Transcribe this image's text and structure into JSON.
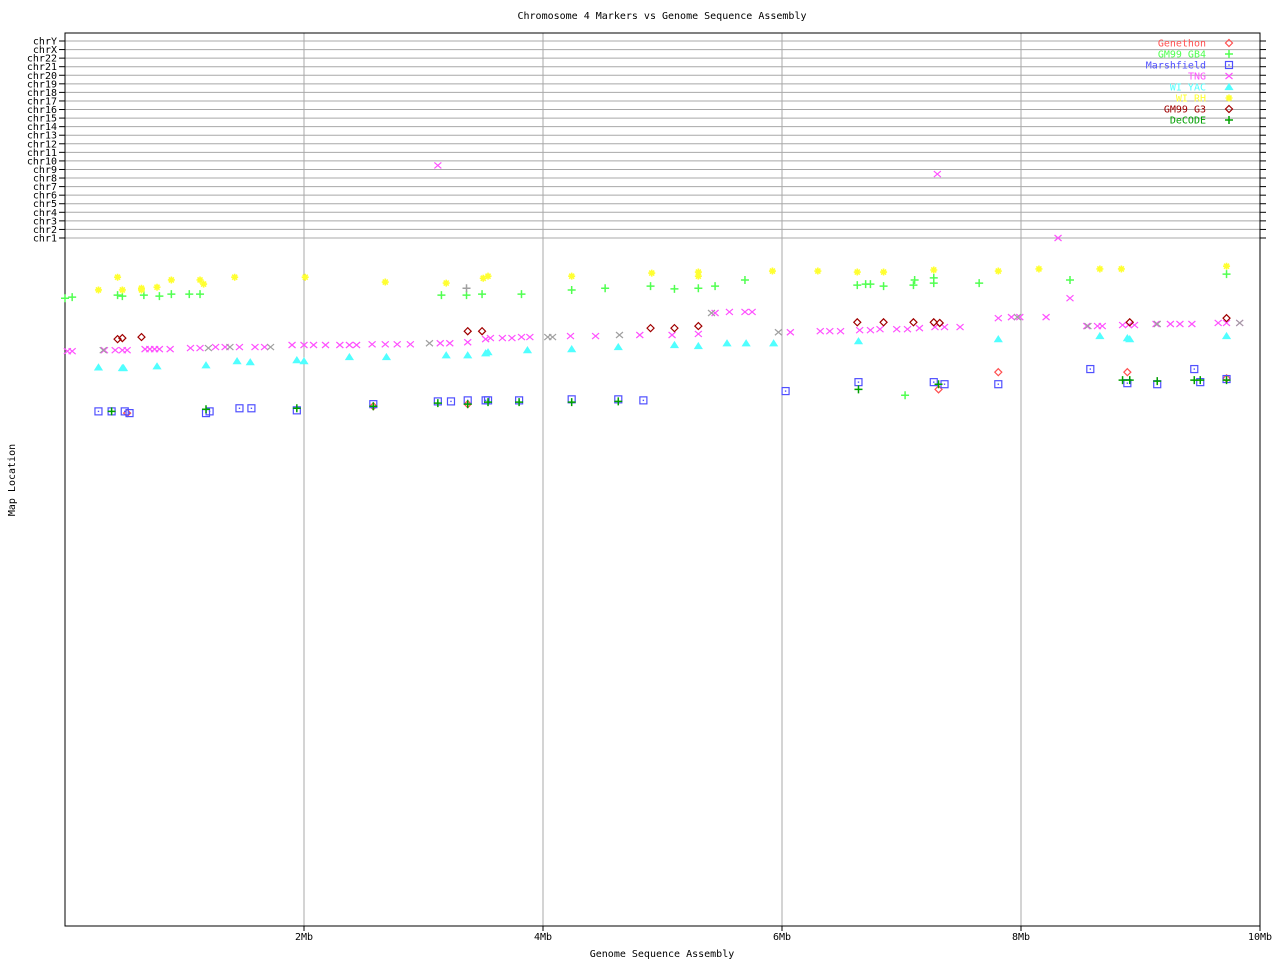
{
  "chart_data": {
    "type": "scatter",
    "title": "Chromosome 4 Markers vs Genome Sequence Assembly",
    "xlabel": "Genome Sequence Assembly",
    "ylabel": "Map Location",
    "xlim": [
      0,
      10
    ],
    "x_unit": "Mb",
    "x_ticks": [
      "2Mb",
      "4Mb",
      "6Mb",
      "8Mb",
      "10Mb"
    ],
    "x_tick_values": [
      2,
      4,
      6,
      8,
      10
    ],
    "ylim": [
      0,
      200
    ],
    "y_inverted": true,
    "chromosome_lines": [
      "chrY",
      "chrX",
      "chr22",
      "chr21",
      "chr20",
      "chr19",
      "chr18",
      "chr17",
      "chr16",
      "chr15",
      "chr14",
      "chr13",
      "chr12",
      "chr11",
      "chr10",
      "chr9",
      "chr8",
      "chr7",
      "chr6",
      "chr5",
      "chr4",
      "chr3",
      "chr2",
      "chr1"
    ],
    "grid": true,
    "legend_position": "top-right",
    "series": [
      {
        "name": "Genethon",
        "color": "#ff5050",
        "marker": "diamond",
        "points": [
          [
            0.52,
            50.9
          ],
          [
            2.58,
            48.9
          ],
          [
            3.37,
            48.3
          ],
          [
            7.31,
            44.0
          ],
          [
            7.81,
            39.0
          ],
          [
            8.89,
            39.0
          ],
          [
            9.72,
            40.8
          ]
        ]
      },
      {
        "name": "GM99 GB4",
        "color": "#50ff50",
        "marker": "plus",
        "points": [
          [
            0.0,
            17.5
          ],
          [
            0.06,
            17.2
          ],
          [
            0.44,
            16.6
          ],
          [
            0.48,
            16.9
          ],
          [
            0.66,
            16.6
          ],
          [
            0.79,
            16.9
          ],
          [
            0.89,
            16.3
          ],
          [
            1.04,
            16.3
          ],
          [
            1.13,
            16.3
          ],
          [
            3.15,
            16.6
          ],
          [
            3.36,
            16.6
          ],
          [
            3.49,
            16.3
          ],
          [
            3.82,
            16.3
          ],
          [
            4.24,
            15.1
          ],
          [
            4.52,
            14.6
          ],
          [
            4.9,
            14.0
          ],
          [
            5.1,
            14.8
          ],
          [
            5.3,
            14.6
          ],
          [
            5.44,
            14.0
          ],
          [
            5.69,
            12.2
          ],
          [
            6.63,
            13.7
          ],
          [
            6.7,
            13.4
          ],
          [
            6.74,
            13.4
          ],
          [
            6.85,
            14.0
          ],
          [
            7.03,
            45.7
          ],
          [
            7.1,
            13.7
          ],
          [
            7.11,
            12.2
          ],
          [
            7.27,
            13.1
          ],
          [
            7.27,
            11.6
          ],
          [
            7.65,
            13.1
          ],
          [
            8.41,
            12.2
          ],
          [
            9.72,
            10.5
          ]
        ]
      },
      {
        "name": "Marshfield",
        "color": "#5050ff",
        "marker": "square",
        "points": [
          [
            0.28,
            50.4
          ],
          [
            0.39,
            50.4
          ],
          [
            0.5,
            50.4
          ],
          [
            0.54,
            50.9
          ],
          [
            1.18,
            50.9
          ],
          [
            1.21,
            50.4
          ],
          [
            1.46,
            49.5
          ],
          [
            1.56,
            49.5
          ],
          [
            1.94,
            50.1
          ],
          [
            2.58,
            48.3
          ],
          [
            3.12,
            47.5
          ],
          [
            3.23,
            47.5
          ],
          [
            3.37,
            47.2
          ],
          [
            3.52,
            47.2
          ],
          [
            3.54,
            47.2
          ],
          [
            3.8,
            47.2
          ],
          [
            4.24,
            46.9
          ],
          [
            4.63,
            46.9
          ],
          [
            4.84,
            47.2
          ],
          [
            6.03,
            44.5
          ],
          [
            6.64,
            41.9
          ],
          [
            7.27,
            41.9
          ],
          [
            7.36,
            42.5
          ],
          [
            7.81,
            42.5
          ],
          [
            8.58,
            38.1
          ],
          [
            8.89,
            42.2
          ],
          [
            9.14,
            42.5
          ],
          [
            9.45,
            38.1
          ],
          [
            9.5,
            41.9
          ],
          [
            9.72,
            41.0
          ]
        ]
      },
      {
        "name": "TNG",
        "color": "#ff50ff",
        "marker": "x",
        "points": [
          [
            0.02,
            32.9
          ],
          [
            0.06,
            32.9
          ],
          [
            0.33,
            32.6
          ],
          [
            0.42,
            32.6
          ],
          [
            0.48,
            32.6
          ],
          [
            0.52,
            32.6
          ],
          [
            0.67,
            32.3
          ],
          [
            0.71,
            32.3
          ],
          [
            0.75,
            32.3
          ],
          [
            0.79,
            32.3
          ],
          [
            0.88,
            32.3
          ],
          [
            1.05,
            32.0
          ],
          [
            1.13,
            32.0
          ],
          [
            1.26,
            31.7
          ],
          [
            1.34,
            31.7
          ],
          [
            1.46,
            31.7
          ],
          [
            1.59,
            31.7
          ],
          [
            1.67,
            31.7
          ],
          [
            1.9,
            31.1
          ],
          [
            2.0,
            31.1
          ],
          [
            2.08,
            31.1
          ],
          [
            2.18,
            31.1
          ],
          [
            2.3,
            31.1
          ],
          [
            2.38,
            31.1
          ],
          [
            2.44,
            31.1
          ],
          [
            2.57,
            30.9
          ],
          [
            2.68,
            30.9
          ],
          [
            2.78,
            30.9
          ],
          [
            2.89,
            30.9
          ],
          [
            3.14,
            30.6
          ],
          [
            3.22,
            30.6
          ],
          [
            3.37,
            30.3
          ],
          [
            3.52,
            29.4
          ],
          [
            3.56,
            29.1
          ],
          [
            3.66,
            29.1
          ],
          [
            3.74,
            29.1
          ],
          [
            3.82,
            28.8
          ],
          [
            3.89,
            28.8
          ],
          [
            4.23,
            28.5
          ],
          [
            4.44,
            28.5
          ],
          [
            4.81,
            28.2
          ],
          [
            5.08,
            28.2
          ],
          [
            5.3,
            27.9
          ],
          [
            5.44,
            21.8
          ],
          [
            5.56,
            21.5
          ],
          [
            5.69,
            21.5
          ],
          [
            5.75,
            21.5
          ],
          [
            6.07,
            27.4
          ],
          [
            6.32,
            27.1
          ],
          [
            6.4,
            27.1
          ],
          [
            6.49,
            27.1
          ],
          [
            6.65,
            26.8
          ],
          [
            6.74,
            26.8
          ],
          [
            6.82,
            26.5
          ],
          [
            6.96,
            26.5
          ],
          [
            7.05,
            26.5
          ],
          [
            7.15,
            26.2
          ],
          [
            7.28,
            25.9
          ],
          [
            7.36,
            25.9
          ],
          [
            7.49,
            25.9
          ],
          [
            7.81,
            23.3
          ],
          [
            7.92,
            23.0
          ],
          [
            7.99,
            23.0
          ],
          [
            8.21,
            23.0
          ],
          [
            8.41,
            17.5
          ],
          [
            8.55,
            25.6
          ],
          [
            8.64,
            25.6
          ],
          [
            8.68,
            25.6
          ],
          [
            8.85,
            25.3
          ],
          [
            8.9,
            25.3
          ],
          [
            8.95,
            25.3
          ],
          [
            9.13,
            25.0
          ],
          [
            9.25,
            25.0
          ],
          [
            9.33,
            25.0
          ],
          [
            9.43,
            25.0
          ],
          [
            9.65,
            24.7
          ],
          [
            9.72,
            24.7
          ],
          [
            9.83,
            24.7
          ]
        ],
        "off_chromosome_points": [
          {
            "x": 3.12,
            "chr": "chr9"
          },
          {
            "x": 7.3,
            "chr": "chr8"
          },
          {
            "x": 8.31,
            "chr": "chr1"
          }
        ]
      },
      {
        "name": "WI YAC",
        "color": "#50ffff",
        "marker": "triangle",
        "points": [
          [
            0.28,
            37.6
          ],
          [
            0.48,
            37.8
          ],
          [
            0.49,
            37.8
          ],
          [
            0.77,
            37.3
          ],
          [
            1.18,
            37.0
          ],
          [
            1.44,
            35.8
          ],
          [
            1.55,
            36.1
          ],
          [
            1.94,
            35.5
          ],
          [
            2.0,
            35.8
          ],
          [
            2.38,
            34.6
          ],
          [
            2.69,
            34.6
          ],
          [
            3.19,
            34.1
          ],
          [
            3.37,
            34.1
          ],
          [
            3.52,
            33.5
          ],
          [
            3.54,
            33.2
          ],
          [
            3.87,
            32.6
          ],
          [
            4.24,
            32.3
          ],
          [
            4.63,
            31.7
          ],
          [
            5.1,
            31.1
          ],
          [
            5.3,
            31.4
          ],
          [
            5.54,
            30.6
          ],
          [
            5.7,
            30.6
          ],
          [
            5.93,
            30.6
          ],
          [
            6.64,
            30.0
          ],
          [
            7.81,
            29.4
          ],
          [
            8.66,
            28.5
          ],
          [
            8.89,
            29.1
          ],
          [
            8.91,
            29.4
          ],
          [
            9.72,
            28.5
          ]
        ]
      },
      {
        "name": "WI RH",
        "color": "#ffff30",
        "marker": "star",
        "points": [
          [
            0.28,
            15.1
          ],
          [
            0.44,
            11.4
          ],
          [
            0.48,
            15.1
          ],
          [
            0.64,
            14.6
          ],
          [
            0.64,
            15.1
          ],
          [
            0.77,
            14.3
          ],
          [
            0.89,
            12.2
          ],
          [
            1.13,
            12.2
          ],
          [
            1.16,
            13.4
          ],
          [
            1.42,
            11.4
          ],
          [
            2.01,
            11.4
          ],
          [
            2.68,
            12.8
          ],
          [
            3.19,
            13.1
          ],
          [
            3.5,
            11.7
          ],
          [
            3.54,
            11.1
          ],
          [
            4.24,
            11.1
          ],
          [
            4.91,
            10.2
          ],
          [
            5.3,
            9.9
          ],
          [
            5.3,
            11.1
          ],
          [
            5.92,
            9.6
          ],
          [
            6.3,
            9.6
          ],
          [
            6.63,
            9.9
          ],
          [
            6.85,
            9.9
          ],
          [
            7.27,
            9.3
          ],
          [
            7.81,
            9.6
          ],
          [
            8.15,
            9.0
          ],
          [
            8.66,
            9.0
          ],
          [
            8.84,
            9.0
          ],
          [
            9.72,
            8.2
          ]
        ]
      },
      {
        "name": "GM99 G3",
        "color": "#a00000",
        "marker": "diamond",
        "points": [
          [
            0.44,
            29.4
          ],
          [
            0.48,
            29.1
          ],
          [
            0.64,
            28.8
          ],
          [
            3.37,
            27.1
          ],
          [
            3.49,
            27.1
          ],
          [
            4.9,
            26.2
          ],
          [
            5.1,
            26.2
          ],
          [
            5.3,
            25.6
          ],
          [
            6.63,
            24.5
          ],
          [
            6.85,
            24.5
          ],
          [
            7.1,
            24.5
          ],
          [
            7.27,
            24.5
          ],
          [
            7.32,
            24.7
          ],
          [
            8.91,
            24.5
          ],
          [
            9.72,
            23.3
          ]
        ]
      },
      {
        "name": "DeCODE",
        "color": "#00a000",
        "marker": "plus",
        "points": [
          [
            0.39,
            50.4
          ],
          [
            1.18,
            49.8
          ],
          [
            1.94,
            49.5
          ],
          [
            2.58,
            48.9
          ],
          [
            3.12,
            48.0
          ],
          [
            3.37,
            48.3
          ],
          [
            3.54,
            47.7
          ],
          [
            3.8,
            47.7
          ],
          [
            4.24,
            47.7
          ],
          [
            4.63,
            47.5
          ],
          [
            6.64,
            44.0
          ],
          [
            7.31,
            42.5
          ],
          [
            8.85,
            41.3
          ],
          [
            8.91,
            41.3
          ],
          [
            9.14,
            41.6
          ],
          [
            9.45,
            41.3
          ],
          [
            9.5,
            41.3
          ],
          [
            9.72,
            41.3
          ]
        ]
      },
      {
        "color": "#a0a0a0",
        "marker": "x",
        "points": [
          [
            0.32,
            32.6
          ],
          [
            1.2,
            32.0
          ],
          [
            1.38,
            31.7
          ],
          [
            1.72,
            31.7
          ],
          [
            3.05,
            30.6
          ],
          [
            4.04,
            28.8
          ],
          [
            4.08,
            28.8
          ],
          [
            4.64,
            28.2
          ],
          [
            5.41,
            21.8
          ],
          [
            5.97,
            27.4
          ],
          [
            7.97,
            23.0
          ],
          [
            8.56,
            25.6
          ],
          [
            9.14,
            25.0
          ],
          [
            9.83,
            24.7
          ]
        ]
      },
      {
        "color": "#a0a0a0",
        "marker": "plus",
        "points": [
          [
            3.36,
            14.6
          ]
        ]
      }
    ]
  }
}
